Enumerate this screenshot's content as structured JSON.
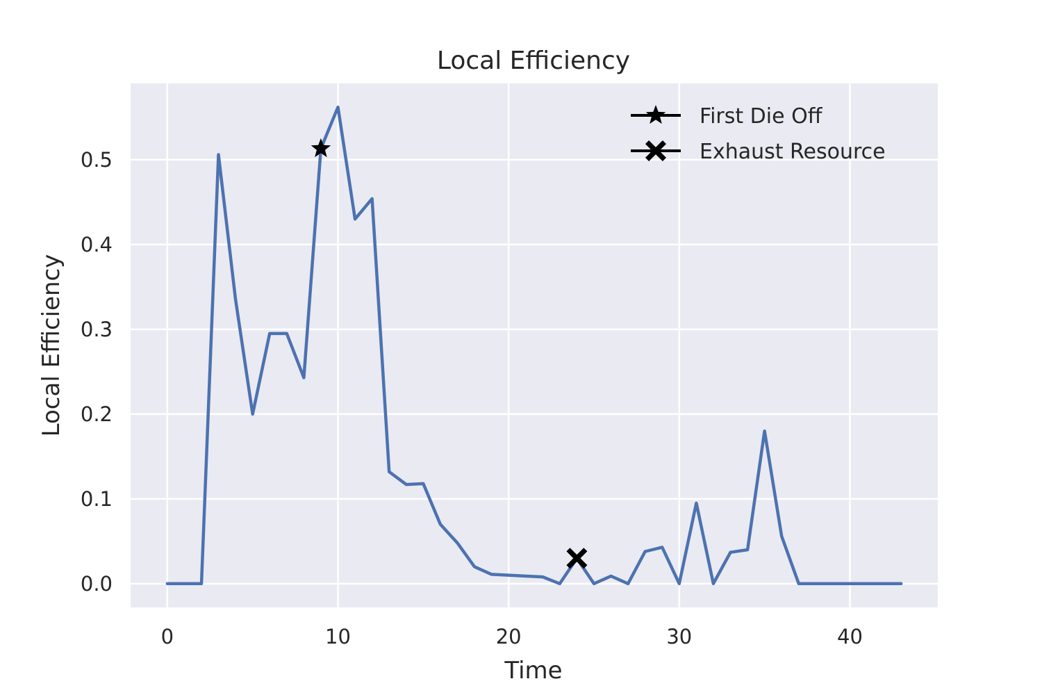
{
  "chart_data": {
    "type": "line",
    "title": "Local Efficiency",
    "xlabel": "Time",
    "ylabel": "Local Efficiency",
    "xlim": [
      -2.15,
      45.15
    ],
    "ylim": [
      -0.028,
      0.59
    ],
    "xticks": [
      0,
      10,
      20,
      30,
      40
    ],
    "yticks": [
      0.0,
      0.1,
      0.2,
      0.3,
      0.4,
      0.5
    ],
    "ytick_labels": [
      "0.0",
      "0.1",
      "0.2",
      "0.3",
      "0.4",
      "0.5"
    ],
    "grid": true,
    "legend_position": "upper right",
    "colors": {
      "background": "#EAEAF2",
      "grid": "#FFFFFF",
      "line": "#4C72B0",
      "marker": "#000000"
    },
    "x": [
      0,
      1,
      2,
      3,
      4,
      5,
      6,
      7,
      8,
      9,
      10,
      11,
      12,
      13,
      14,
      15,
      16,
      17,
      18,
      19,
      20,
      21,
      22,
      23,
      24,
      25,
      26,
      27,
      28,
      29,
      30,
      31,
      32,
      33,
      34,
      35,
      36,
      37,
      38,
      39,
      40,
      41,
      42,
      43
    ],
    "y": [
      0,
      0,
      0,
      0.506,
      0.335,
      0.2,
      0.295,
      0.295,
      0.243,
      0.513,
      0.562,
      0.43,
      0.454,
      0.132,
      0.117,
      0.118,
      0.07,
      0.048,
      0.02,
      0.011,
      0.01,
      0.009,
      0.008,
      0.0,
      0.03,
      0.0,
      0.009,
      0.0,
      0.038,
      0.043,
      0.0,
      0.095,
      0.0,
      0.037,
      0.04,
      0.18,
      0.056,
      0,
      0,
      0,
      0,
      0,
      0,
      0
    ],
    "markers": [
      {
        "name": "First Die Off",
        "symbol": "star",
        "x": 9,
        "y": 0.513
      },
      {
        "name": "Exhaust Resource",
        "symbol": "x",
        "x": 24,
        "y": 0.03
      }
    ]
  }
}
